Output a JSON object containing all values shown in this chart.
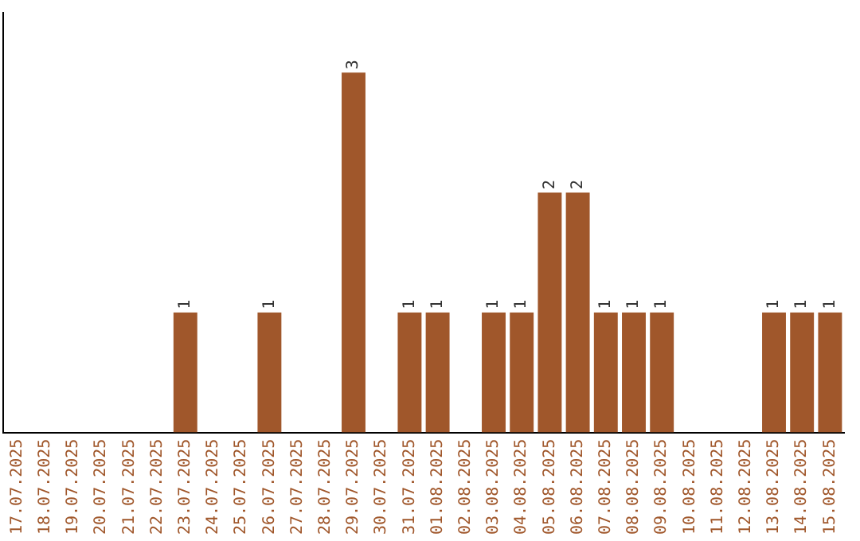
{
  "chart_data": {
    "type": "bar",
    "categories": [
      "17.07.2025",
      "18.07.2025",
      "19.07.2025",
      "20.07.2025",
      "21.07.2025",
      "22.07.2025",
      "23.07.2025",
      "24.07.2025",
      "25.07.2025",
      "26.07.2025",
      "27.07.2025",
      "28.07.2025",
      "29.07.2025",
      "30.07.2025",
      "31.07.2025",
      "01.08.2025",
      "02.08.2025",
      "03.08.2025",
      "04.08.2025",
      "05.08.2025",
      "06.08.2025",
      "07.08.2025",
      "08.08.2025",
      "09.08.2025",
      "10.08.2025",
      "11.08.2025",
      "12.08.2025",
      "13.08.2025",
      "14.08.2025",
      "15.08.2025"
    ],
    "values": [
      0,
      0,
      0,
      0,
      0,
      0,
      1,
      0,
      0,
      1,
      0,
      0,
      3,
      0,
      1,
      1,
      0,
      1,
      1,
      2,
      2,
      1,
      1,
      1,
      0,
      0,
      0,
      1,
      1,
      1
    ],
    "value_labels": [
      null,
      null,
      null,
      null,
      null,
      null,
      "1",
      null,
      null,
      "1",
      null,
      null,
      "3",
      null,
      "1",
      "1",
      null,
      "1",
      "1",
      "2",
      "2",
      "1",
      "1",
      "1",
      null,
      null,
      null,
      "1",
      "1",
      "1"
    ],
    "color": "#a0572b",
    "grid": false,
    "legend": false,
    "tick_labels": "x"
  }
}
